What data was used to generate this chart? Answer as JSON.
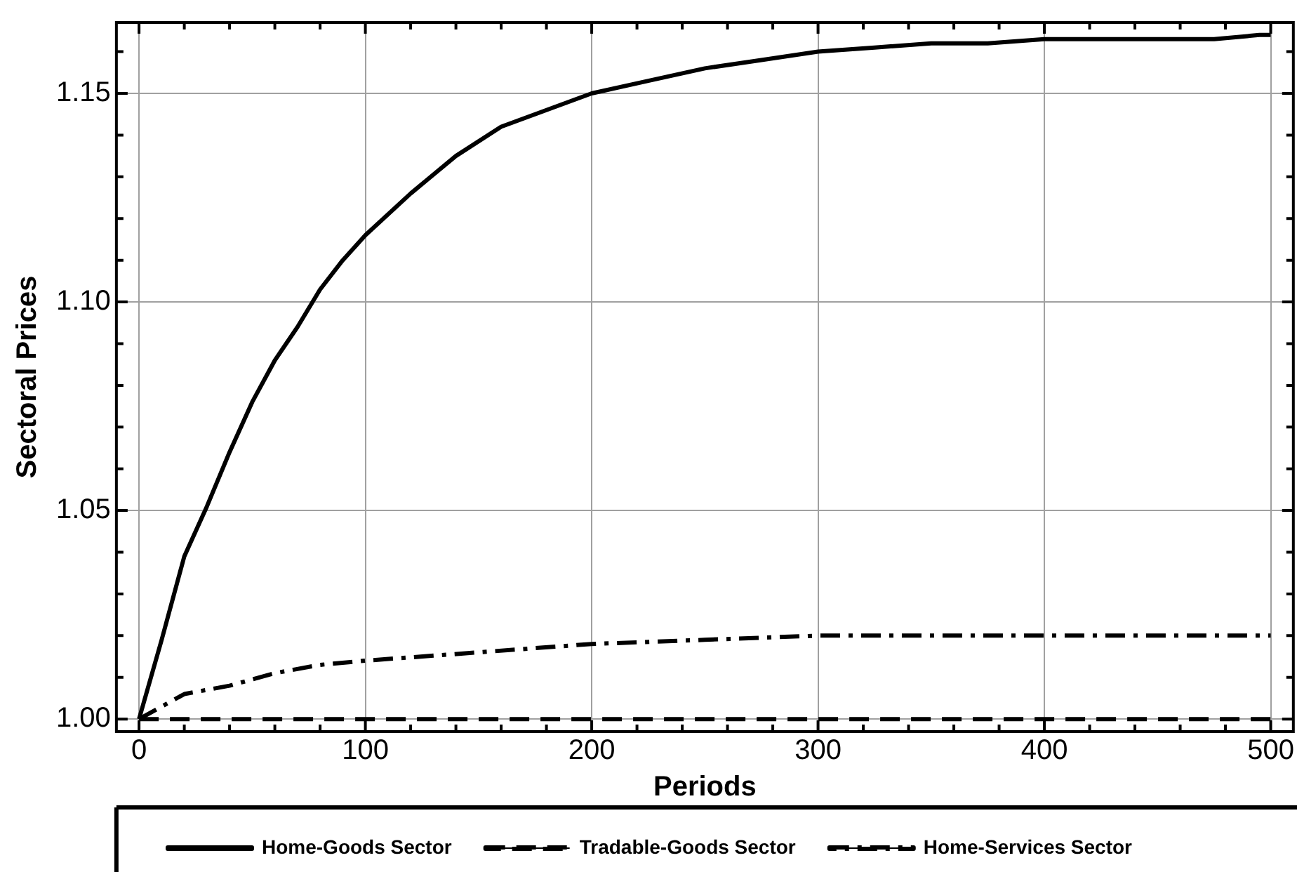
{
  "chart_data": {
    "type": "line",
    "xlabel": "Periods",
    "ylabel": "Sectoral Prices",
    "xlim": [
      -10,
      510
    ],
    "ylim": [
      0.997,
      1.167
    ],
    "xticks": [
      0,
      {
        "value": 20,
        "label": null
      },
      {
        "value": 40,
        "label": null
      },
      {
        "value": 60,
        "label": null
      },
      {
        "value": 80,
        "label": null
      },
      100,
      {
        "value": 120,
        "label": null
      },
      {
        "value": 140,
        "label": null
      },
      {
        "value": 160,
        "label": null
      },
      {
        "value": 180,
        "label": null
      },
      200,
      {
        "value": 220,
        "label": null
      },
      {
        "value": 240,
        "label": null
      },
      {
        "value": 260,
        "label": null
      },
      {
        "value": 280,
        "label": null
      },
      300,
      {
        "value": 320,
        "label": null
      },
      {
        "value": 340,
        "label": null
      },
      {
        "value": 360,
        "label": null
      },
      {
        "value": 380,
        "label": null
      },
      400,
      {
        "value": 420,
        "label": null
      },
      {
        "value": 440,
        "label": null
      },
      {
        "value": 460,
        "label": null
      },
      {
        "value": 480,
        "label": null
      },
      500
    ],
    "yticks": [
      {
        "value": 1.0,
        "label": "1.00"
      },
      {
        "value": 1.01,
        "label": null
      },
      {
        "value": 1.02,
        "label": null
      },
      {
        "value": 1.03,
        "label": null
      },
      {
        "value": 1.04,
        "label": null
      },
      {
        "value": 1.05,
        "label": "1.05"
      },
      {
        "value": 1.06,
        "label": null
      },
      {
        "value": 1.07,
        "label": null
      },
      {
        "value": 1.08,
        "label": null
      },
      {
        "value": 1.09,
        "label": null
      },
      {
        "value": 1.1,
        "label": "1.10"
      },
      {
        "value": 1.11,
        "label": null
      },
      {
        "value": 1.12,
        "label": null
      },
      {
        "value": 1.13,
        "label": null
      },
      {
        "value": 1.14,
        "label": null
      },
      {
        "value": 1.15,
        "label": "1.15"
      },
      {
        "value": 1.16,
        "label": null
      }
    ],
    "grid": true,
    "legend": "bottom",
    "marker": "none",
    "series": [
      {
        "name": "Home-Goods Sector",
        "color": "#000000",
        "line_style": "solid",
        "x": [
          0,
          10,
          20,
          30,
          40,
          50,
          60,
          70,
          80,
          90,
          100,
          120,
          140,
          160,
          180,
          200,
          225,
          250,
          275,
          300,
          325,
          350,
          375,
          400,
          425,
          450,
          475,
          495,
          500
        ],
        "values": [
          1.0,
          1.019,
          1.039,
          1.051,
          1.064,
          1.076,
          1.086,
          1.094,
          1.103,
          1.11,
          1.116,
          1.126,
          1.135,
          1.142,
          1.146,
          1.15,
          1.153,
          1.156,
          1.158,
          1.16,
          1.161,
          1.162,
          1.162,
          1.163,
          1.163,
          1.163,
          1.163,
          1.164,
          1.164
        ]
      },
      {
        "name": "Tradable-Goods Sector",
        "color": "#000000",
        "line_style": "dashed",
        "x": [
          0,
          500
        ],
        "values": [
          1.0,
          1.0
        ]
      },
      {
        "name": "Home-Services Sector",
        "color": "#000000",
        "line_style": "dashdot",
        "x": [
          0,
          20,
          40,
          60,
          80,
          100,
          150,
          200,
          250,
          300,
          400,
          500
        ],
        "values": [
          1.0,
          1.006,
          1.008,
          1.011,
          1.013,
          1.014,
          1.016,
          1.018,
          1.019,
          1.02,
          1.02,
          1.02
        ]
      }
    ]
  }
}
